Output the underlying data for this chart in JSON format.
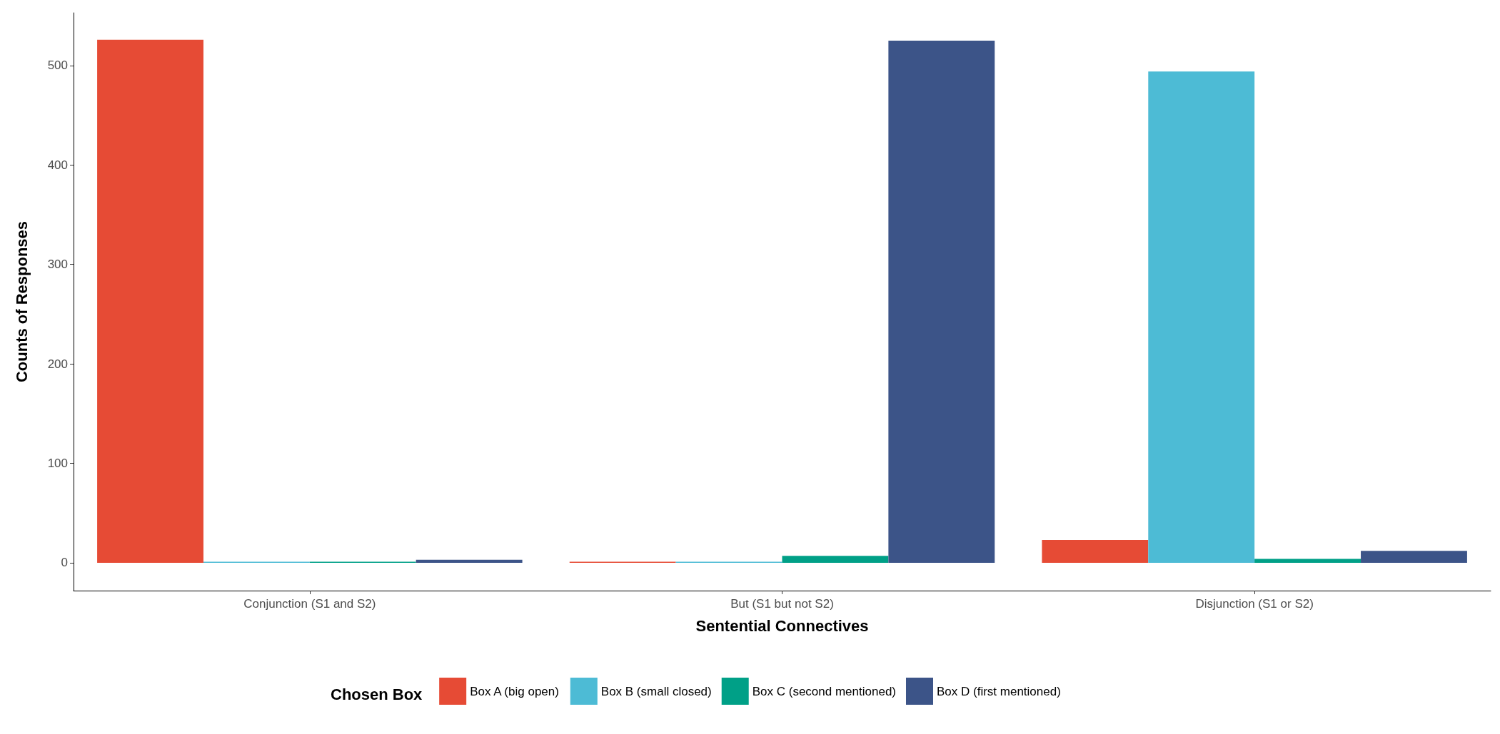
{
  "chart_data": {
    "type": "bar",
    "xlabel": "Sentential Connectives",
    "ylabel": "Counts of Responses",
    "legend_title": "Chosen Box",
    "categories": [
      "Conjunction (S1 and S2)",
      "But (S1 but not S2)",
      "Disjunction (S1 or S2)"
    ],
    "series": [
      {
        "name": "Box A (big open)",
        "color": "#e64b35",
        "values": [
          526,
          1,
          23
        ]
      },
      {
        "name": "Box B (small closed)",
        "color": "#4dbbd5",
        "values": [
          1,
          1,
          494
        ]
      },
      {
        "name": "Box C (second mentioned)",
        "color": "#00a087",
        "values": [
          1,
          7,
          4
        ]
      },
      {
        "name": "Box D (first mentioned)",
        "color": "#3c5488",
        "values": [
          3,
          525,
          12
        ]
      }
    ],
    "ylim": [
      -28,
      553
    ],
    "yticks": [
      0,
      100,
      200,
      300,
      400,
      500
    ],
    "grid": false,
    "legend": "bottom"
  }
}
